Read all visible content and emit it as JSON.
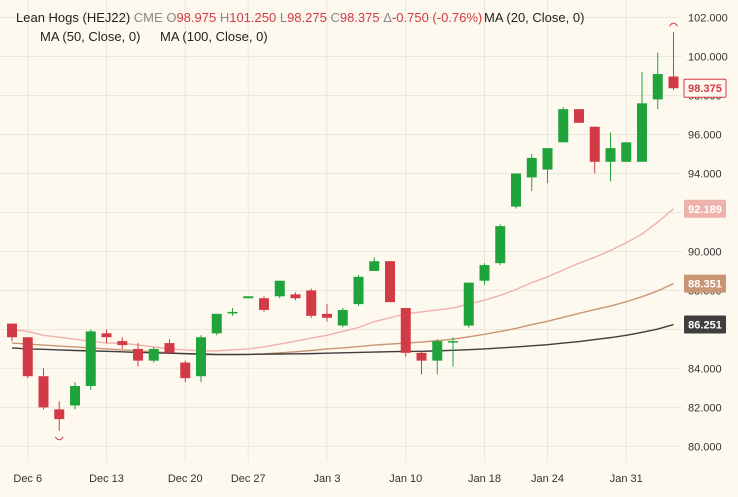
{
  "legend": {
    "symbol_title": "Lean Hogs (HEJ22)",
    "exchange": "CME",
    "o_label": "O",
    "o_value": "98.975",
    "h_label": "H",
    "h_value": "101.250",
    "l_label": "L",
    "l_value": "98.275",
    "c_label": "C",
    "c_value": "98.375",
    "change_label": "Δ",
    "change_value": "-0.750 (-0.76%)",
    "ma20": "MA (20, Close, 0)",
    "ma50": "MA (50, Close, 0)",
    "ma100": "MA (100, Close, 0)"
  },
  "chart_data": {
    "type": "candlestick",
    "ylim": [
      79.2,
      102.9
    ],
    "y_ticks": [
      "80.000",
      "82.000",
      "84.000",
      "86.000",
      "88.000",
      "90.000",
      "92.000",
      "94.000",
      "96.000",
      "98.000",
      "100.000",
      "102.000"
    ],
    "x_labels": [
      "Dec 6",
      "Dec 13",
      "Dec 20",
      "Dec 27",
      "Jan 3",
      "Jan 10",
      "Jan 18",
      "Jan 24",
      "Jan 31"
    ],
    "colors": {
      "up": "#1fa33a",
      "down": "#d23a45",
      "ma20": "#eeb1ab",
      "ma50": "#c99574",
      "ma100": "#3e3e3e"
    },
    "candles": [
      {
        "x": "Dec 3",
        "o": 86.3,
        "h": 86.3,
        "l": 85.4,
        "c": 85.6
      },
      {
        "x": "Dec 6",
        "o": 85.6,
        "h": 85.6,
        "l": 83.5,
        "c": 83.6
      },
      {
        "x": "Dec 7",
        "o": 83.6,
        "h": 84.0,
        "l": 81.9,
        "c": 82.0
      },
      {
        "x": "Dec 8",
        "o": 81.9,
        "h": 82.3,
        "l": 80.8,
        "c": 81.4
      },
      {
        "x": "Dec 9",
        "o": 82.1,
        "h": 83.3,
        "l": 81.9,
        "c": 83.1
      },
      {
        "x": "Dec 10",
        "o": 83.1,
        "h": 86.0,
        "l": 82.9,
        "c": 85.9
      },
      {
        "x": "Dec 13",
        "o": 85.8,
        "h": 86.0,
        "l": 85.3,
        "c": 85.6
      },
      {
        "x": "Dec 14",
        "o": 85.4,
        "h": 85.6,
        "l": 85.0,
        "c": 85.2
      },
      {
        "x": "Dec 15",
        "o": 85.0,
        "h": 85.3,
        "l": 84.1,
        "c": 84.4
      },
      {
        "x": "Dec 16",
        "o": 84.4,
        "h": 85.1,
        "l": 84.3,
        "c": 85.0
      },
      {
        "x": "Dec 17",
        "o": 85.3,
        "h": 85.5,
        "l": 84.8,
        "c": 84.8
      },
      {
        "x": "Dec 20",
        "o": 84.3,
        "h": 84.4,
        "l": 83.3,
        "c": 83.5
      },
      {
        "x": "Dec 21",
        "o": 83.6,
        "h": 85.7,
        "l": 83.3,
        "c": 85.6
      },
      {
        "x": "Dec 22",
        "o": 85.8,
        "h": 86.8,
        "l": 85.7,
        "c": 86.8
      },
      {
        "x": "Dec 23",
        "o": 86.9,
        "h": 87.1,
        "l": 86.7,
        "c": 86.9
      },
      {
        "x": "Dec 27",
        "o": 87.6,
        "h": 87.7,
        "l": 87.6,
        "c": 87.7
      },
      {
        "x": "Dec 28",
        "o": 87.6,
        "h": 87.7,
        "l": 86.9,
        "c": 87.0
      },
      {
        "x": "Dec 29",
        "o": 87.7,
        "h": 88.5,
        "l": 87.6,
        "c": 88.5
      },
      {
        "x": "Dec 30",
        "o": 87.8,
        "h": 87.9,
        "l": 87.5,
        "c": 87.6
      },
      {
        "x": "Dec 31",
        "o": 88.0,
        "h": 88.1,
        "l": 86.6,
        "c": 86.7
      },
      {
        "x": "Jan 3",
        "o": 86.8,
        "h": 87.3,
        "l": 86.4,
        "c": 86.6
      },
      {
        "x": "Jan 4",
        "o": 86.2,
        "h": 87.1,
        "l": 86.1,
        "c": 87.0
      },
      {
        "x": "Jan 5",
        "o": 87.3,
        "h": 88.8,
        "l": 87.2,
        "c": 88.7
      },
      {
        "x": "Jan 6",
        "o": 89.0,
        "h": 89.7,
        "l": 89.0,
        "c": 89.5
      },
      {
        "x": "Jan 7",
        "o": 89.5,
        "h": 89.5,
        "l": 87.4,
        "c": 87.4
      },
      {
        "x": "Jan 10",
        "o": 87.1,
        "h": 87.1,
        "l": 84.6,
        "c": 84.8
      },
      {
        "x": "Jan 11",
        "o": 84.8,
        "h": 84.9,
        "l": 83.7,
        "c": 84.4
      },
      {
        "x": "Jan 12",
        "o": 84.4,
        "h": 85.5,
        "l": 83.7,
        "c": 85.4
      },
      {
        "x": "Jan 13",
        "o": 85.4,
        "h": 85.6,
        "l": 84.1,
        "c": 85.4
      },
      {
        "x": "Jan 14",
        "o": 86.2,
        "h": 88.4,
        "l": 86.1,
        "c": 88.4
      },
      {
        "x": "Jan 18",
        "o": 88.5,
        "h": 89.4,
        "l": 88.3,
        "c": 89.3
      },
      {
        "x": "Jan 19",
        "o": 89.4,
        "h": 91.4,
        "l": 89.3,
        "c": 91.3
      },
      {
        "x": "Jan 20",
        "o": 92.3,
        "h": 94.0,
        "l": 92.2,
        "c": 94.0
      },
      {
        "x": "Jan 21",
        "o": 93.8,
        "h": 95.0,
        "l": 93.1,
        "c": 94.8
      },
      {
        "x": "Jan 24",
        "o": 94.2,
        "h": 95.3,
        "l": 93.5,
        "c": 95.3
      },
      {
        "x": "Jan 25",
        "o": 95.6,
        "h": 97.4,
        "l": 95.6,
        "c": 97.3
      },
      {
        "x": "Jan 26",
        "o": 97.3,
        "h": 97.3,
        "l": 96.6,
        "c": 96.6
      },
      {
        "x": "Jan 27",
        "o": 96.4,
        "h": 96.4,
        "l": 94.0,
        "c": 94.6
      },
      {
        "x": "Jan 28",
        "o": 94.6,
        "h": 96.1,
        "l": 93.6,
        "c": 95.3
      },
      {
        "x": "Jan 31",
        "o": 94.6,
        "h": 95.6,
        "l": 94.6,
        "c": 95.6
      },
      {
        "x": "Feb 1",
        "o": 94.6,
        "h": 99.2,
        "l": 94.6,
        "c": 97.6
      },
      {
        "x": "Feb 2",
        "o": 97.8,
        "h": 100.2,
        "l": 97.3,
        "c": 99.1
      },
      {
        "x": "Feb 3",
        "o": 98.975,
        "h": 101.25,
        "l": 98.275,
        "c": 98.375
      }
    ],
    "ma": [
      {
        "name": "MA (20, Close, 0)",
        "key": "ma20",
        "last": "92.189",
        "values": [
          86.0,
          85.9,
          85.7,
          85.6,
          85.5,
          85.4,
          85.3,
          85.3,
          85.2,
          85.1,
          85.0,
          84.95,
          84.9,
          84.9,
          84.95,
          85.0,
          85.1,
          85.25,
          85.4,
          85.55,
          85.7,
          85.9,
          86.1,
          86.4,
          86.6,
          86.8,
          86.9,
          87.0,
          87.1,
          87.3,
          87.5,
          87.75,
          88.05,
          88.4,
          88.7,
          89.05,
          89.4,
          89.7,
          90.05,
          90.45,
          90.9,
          91.5,
          92.189
        ]
      },
      {
        "name": "MA (50, Close, 0)",
        "key": "ma50",
        "last": "88.351",
        "values": [
          85.3,
          85.25,
          85.2,
          85.15,
          85.1,
          85.05,
          85.0,
          84.95,
          84.9,
          84.85,
          84.8,
          84.75,
          84.72,
          84.7,
          84.7,
          84.72,
          84.75,
          84.8,
          84.85,
          84.92,
          85.0,
          85.05,
          85.12,
          85.2,
          85.25,
          85.3,
          85.35,
          85.42,
          85.5,
          85.62,
          85.75,
          85.9,
          86.05,
          86.25,
          86.42,
          86.62,
          86.82,
          87.02,
          87.2,
          87.42,
          87.68,
          87.98,
          88.351
        ]
      },
      {
        "name": "MA (100, Close, 0)",
        "key": "ma100",
        "last": "86.251",
        "values": [
          85.05,
          85.0,
          84.98,
          84.95,
          84.92,
          84.9,
          84.88,
          84.85,
          84.82,
          84.8,
          84.78,
          84.76,
          84.74,
          84.72,
          84.72,
          84.72,
          84.73,
          84.74,
          84.75,
          84.76,
          84.78,
          84.8,
          84.82,
          84.84,
          84.86,
          84.87,
          84.88,
          84.9,
          84.93,
          84.96,
          85.0,
          85.05,
          85.1,
          85.16,
          85.22,
          85.3,
          85.38,
          85.48,
          85.58,
          85.7,
          85.85,
          86.02,
          86.251
        ]
      }
    ],
    "last_price_label": "98.375",
    "grid": true
  }
}
